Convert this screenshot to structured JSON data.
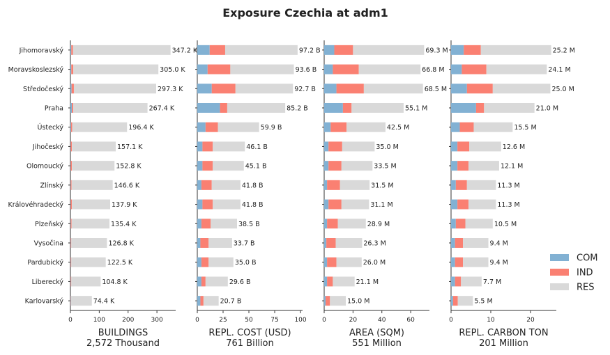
{
  "title": "Exposure Czechia at adm1",
  "legend": [
    {
      "name": "COM",
      "color": "#82b1d3"
    },
    {
      "name": "IND",
      "color": "#fa8072"
    },
    {
      "name": "RES",
      "color": "#d9d9d9"
    }
  ],
  "chart_data": [
    {
      "type": "bar",
      "orientation": "horizontal",
      "stacked": true,
      "xlabel": "BUILDINGS",
      "xsublabel": "2,572 Thousand",
      "xlim": [
        0,
        365
      ],
      "xticks": [
        "0",
        "100",
        "200",
        "300"
      ],
      "categories": [
        "Jihomoravský",
        "Moravskoslezský",
        "Středočeský",
        "Praha",
        "Ústecký",
        "Jihočeský",
        "Olomoucký",
        "Zlínský",
        "Královéhradecký",
        "Plzeňský",
        "Vysočina",
        "Pardubický",
        "Liberecký",
        "Karlovarský"
      ],
      "totals_label": [
        "347.2 K",
        "305.0 K",
        "297.3 K",
        "267.4 K",
        "196.4 K",
        "157.1 K",
        "152.8 K",
        "146.6 K",
        "137.9 K",
        "135.4 K",
        "126.8 K",
        "122.5 K",
        "104.8 K",
        "74.4 K"
      ],
      "series": [
        {
          "name": "COM",
          "values": [
            3,
            3,
            4,
            5,
            2,
            1,
            1,
            1,
            1,
            1,
            1,
            1,
            1,
            1
          ]
        },
        {
          "name": "IND",
          "values": [
            6,
            7,
            8,
            5,
            4,
            4,
            4,
            3,
            4,
            3,
            2,
            2,
            2,
            1
          ]
        },
        {
          "name": "RES",
          "values": [
            338.2,
            295.0,
            285.3,
            257.4,
            190.4,
            152.1,
            147.8,
            142.6,
            132.9,
            131.4,
            123.8,
            119.5,
            101.8,
            72.4
          ]
        }
      ]
    },
    {
      "type": "bar",
      "orientation": "horizontal",
      "stacked": true,
      "xlabel": "REPL. COST (USD)",
      "xsublabel": "761 Billion",
      "xlim": [
        0,
        102
      ],
      "xticks": [
        "0",
        "25",
        "50",
        "75",
        "100"
      ],
      "categories": [
        "Jihomoravský",
        "Moravskoslezský",
        "Středočeský",
        "Praha",
        "Ústecký",
        "Jihočeský",
        "Olomoucký",
        "Zlínský",
        "Královéhradecký",
        "Plzeňský",
        "Vysočina",
        "Pardubický",
        "Liberecký",
        "Karlovarský"
      ],
      "totals_label": [
        "97.2 B",
        "93.6 B",
        "92.7 B",
        "85.2 B",
        "59.9 B",
        "46.1 B",
        "45.1 B",
        "41.8 B",
        "41.8 B",
        "38.5 B",
        "33.7 B",
        "35.0 B",
        "29.6 B",
        "20.7 B"
      ],
      "series": [
        {
          "name": "COM",
          "values": [
            12,
            10,
            14,
            22,
            8,
            5,
            5,
            4,
            5,
            4,
            3,
            4,
            4,
            3
          ]
        },
        {
          "name": "IND",
          "values": [
            15,
            22,
            23,
            7,
            12,
            10,
            10,
            10,
            10,
            9,
            8,
            7,
            4,
            3
          ]
        },
        {
          "name": "RES",
          "values": [
            70.2,
            61.6,
            55.7,
            56.2,
            39.9,
            31.1,
            30.1,
            27.8,
            26.8,
            25.5,
            22.7,
            24.0,
            21.6,
            14.7
          ]
        }
      ]
    },
    {
      "type": "bar",
      "orientation": "horizontal",
      "stacked": true,
      "xlabel": "AREA (SQM)",
      "xsublabel": "551 Million",
      "xlim": [
        0,
        73
      ],
      "xticks": [
        "0",
        "20",
        "40",
        "60"
      ],
      "categories": [
        "Jihomoravský",
        "Moravskoslezský",
        "Středočeský",
        "Praha",
        "Ústecký",
        "Jihočeský",
        "Olomoucký",
        "Zlínský",
        "Královéhradecký",
        "Plzeňský",
        "Vysočina",
        "Pardubický",
        "Liberecký",
        "Karlovarský"
      ],
      "totals_label": [
        "69.3 M",
        "66.8 M",
        "68.5 M",
        "55.1 M",
        "42.5 M",
        "35.0 M",
        "33.5 M",
        "31.5 M",
        "31.1 M",
        "28.9 M",
        "26.3 M",
        "26.0 M",
        "21.1 M",
        "15.0 M"
      ],
      "series": [
        {
          "name": "COM",
          "values": [
            7,
            6,
            8.5,
            13,
            4.5,
            3,
            3,
            2,
            3,
            2,
            1.5,
            2,
            2,
            1
          ]
        },
        {
          "name": "IND",
          "values": [
            13,
            18,
            19,
            6,
            11,
            9.5,
            9,
            9,
            9,
            7.5,
            6.5,
            6.5,
            4,
            3
          ]
        },
        {
          "name": "RES",
          "values": [
            49.3,
            42.8,
            41.0,
            36.1,
            27.0,
            22.5,
            21.5,
            20.5,
            19.1,
            19.4,
            18.3,
            17.5,
            15.1,
            11.0
          ]
        }
      ]
    },
    {
      "type": "bar",
      "orientation": "horizontal",
      "stacked": true,
      "xlabel": "REPL. CARBON TON",
      "xsublabel": "201 Million",
      "xlim": [
        0,
        26.5
      ],
      "xticks": [
        "0",
        "10",
        "20"
      ],
      "categories": [
        "Jihomoravský",
        "Moravskoslezský",
        "Středočeský",
        "Praha",
        "Ústecký",
        "Jihočeský",
        "Olomoucký",
        "Zlínský",
        "Královéhradecký",
        "Plzeňský",
        "Vysočina",
        "Pardubický",
        "Liberecký",
        "Karlovarský"
      ],
      "totals_label": [
        "25.2 M",
        "24.1 M",
        "25.0 M",
        "21.0 M",
        "15.5 M",
        "12.6 M",
        "12.1 M",
        "11.3 M",
        "11.3 M",
        "10.5 M",
        "9.4 M",
        "9.4 M",
        "7.7 M",
        "5.5 M"
      ],
      "series": [
        {
          "name": "COM",
          "values": [
            3.2,
            2.7,
            4.0,
            6.3,
            2.2,
            1.6,
            1.6,
            1.2,
            1.6,
            1.2,
            1.0,
            1.0,
            1.0,
            0.5
          ]
        },
        {
          "name": "IND",
          "values": [
            4.3,
            6.2,
            6.5,
            2.0,
            3.5,
            3.0,
            2.8,
            2.8,
            2.8,
            2.4,
            2.0,
            2.0,
            1.5,
            1.2
          ]
        },
        {
          "name": "RES",
          "values": [
            17.7,
            15.2,
            14.5,
            12.7,
            9.8,
            8.0,
            7.7,
            7.3,
            6.9,
            6.9,
            6.4,
            6.4,
            5.2,
            3.8
          ]
        }
      ]
    }
  ]
}
